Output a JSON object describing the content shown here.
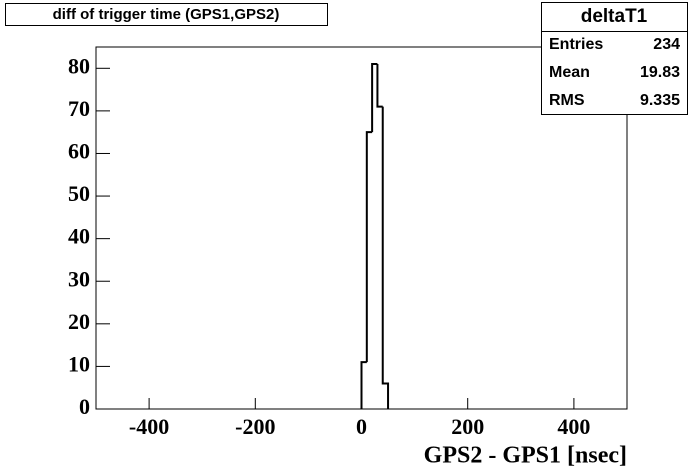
{
  "chart_data": {
    "type": "histogram",
    "title": "diff of trigger time (GPS1,GPS2)",
    "xlabel": "GPS2 - GPS1 [nsec]",
    "bins": [
      0,
      10,
      20,
      30,
      40,
      50
    ],
    "values": [
      11,
      65,
      81,
      71,
      6
    ],
    "color": "#000000",
    "xlim": [
      -500,
      500
    ],
    "xticks": [
      -400,
      -200,
      0,
      200,
      400
    ],
    "ylim": [
      0,
      85
    ],
    "yticks": [
      0,
      10,
      20,
      30,
      40,
      50,
      60,
      70,
      80
    ],
    "stats": {
      "name": "deltaT1",
      "rows": [
        {
          "label": "Entries",
          "value": 234
        },
        {
          "label": "Mean",
          "value": 19.83
        },
        {
          "label": "RMS",
          "value": 9.335
        }
      ]
    }
  }
}
